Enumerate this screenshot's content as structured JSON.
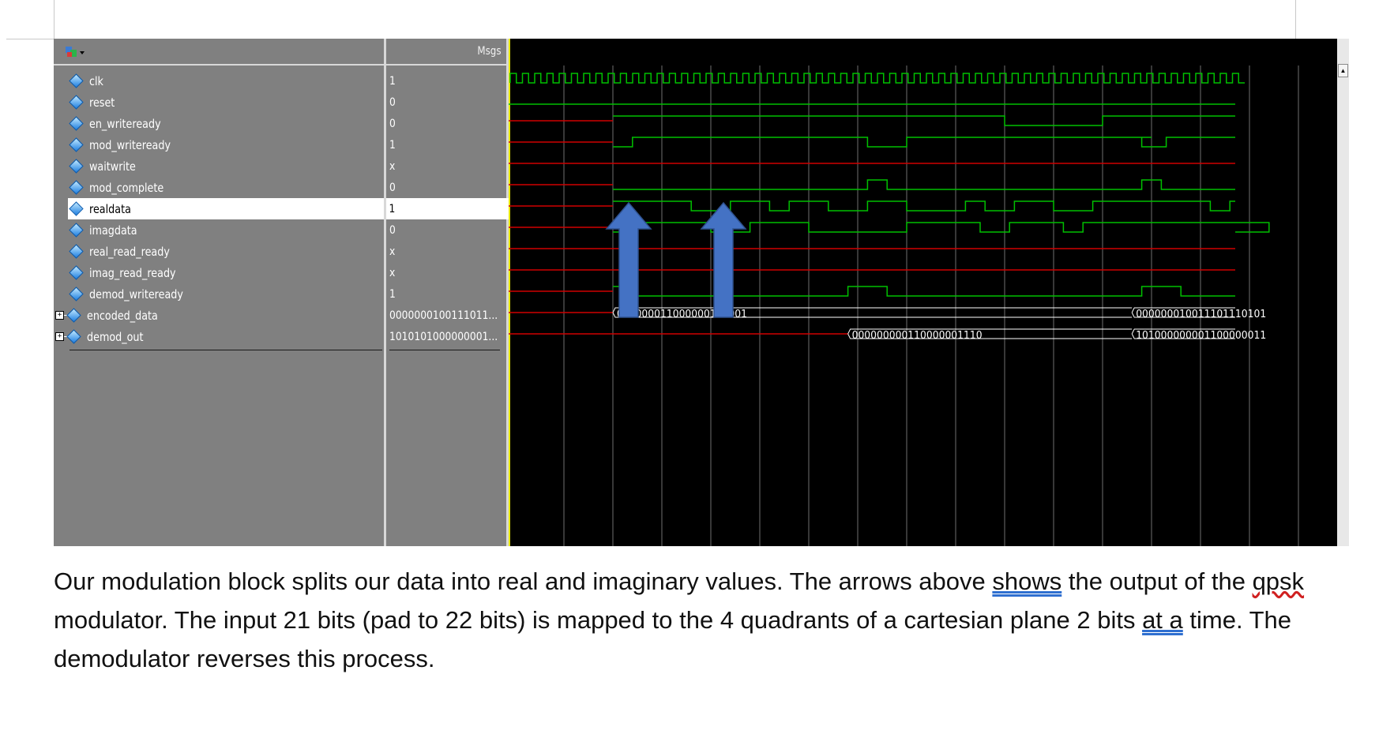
{
  "toolbar": {
    "icon": "wave-add-icon"
  },
  "header": {
    "msgs_label": "Msgs"
  },
  "signals": [
    {
      "name": "clk",
      "value": "1",
      "expandable": false
    },
    {
      "name": "reset",
      "value": "0",
      "expandable": false
    },
    {
      "name": "en_writeready",
      "value": "0",
      "expandable": false
    },
    {
      "name": "mod_writeready",
      "value": "1",
      "expandable": false
    },
    {
      "name": "waitwrite",
      "value": "x",
      "expandable": false
    },
    {
      "name": "mod_complete",
      "value": "0",
      "expandable": false
    },
    {
      "name": "realdata",
      "value": "1",
      "expandable": false,
      "selected": true
    },
    {
      "name": "imagdata",
      "value": "0",
      "expandable": false
    },
    {
      "name": "real_read_ready",
      "value": "x",
      "expandable": false
    },
    {
      "name": "imag_read_ready",
      "value": "x",
      "expandable": false
    },
    {
      "name": "demod_writeready",
      "value": "1",
      "expandable": false
    },
    {
      "name": "encoded_data",
      "value": "0000000100111011...",
      "expandable": true
    },
    {
      "name": "demod_out",
      "value": "1010101000000001...",
      "expandable": true
    }
  ],
  "bus_labels": {
    "encoded_1": "000000011000000111001",
    "encoded_2": "000000010011101110101",
    "demod_1": "000000000110000001110",
    "demod_2": "101000000001100000011"
  },
  "colors": {
    "wave_green": "#00c000",
    "wave_red": "#d00000",
    "arrow_blue": "#4472c4",
    "background": "#000000"
  },
  "caption": {
    "part1": "Our modulation block splits our data into real and imaginary values. The arrows above ",
    "shows": "shows",
    "part2": " the output of the ",
    "qpsk": "qpsk",
    "part3": " modulator. The input 21 bits (pad to 22 bits) is mapped to the 4 quadrants of a cartesian plane 2 bits ",
    "at_a": "at  a",
    "part4": " time. The demodulator reverses this process."
  }
}
